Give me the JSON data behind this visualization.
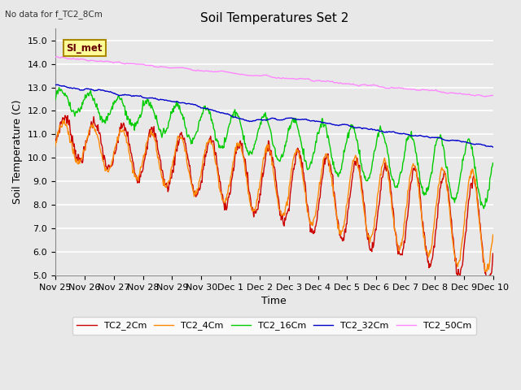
{
  "title": "Soil Temperatures Set 2",
  "top_left_note": "No data for f_TC2_8Cm",
  "annotation_box": "SI_met",
  "xlabel": "Time",
  "ylabel": "Soil Temperature (C)",
  "ylim": [
    5.0,
    15.5
  ],
  "yticks": [
    5.0,
    6.0,
    7.0,
    8.0,
    9.0,
    10.0,
    11.0,
    12.0,
    13.0,
    14.0,
    15.0
  ],
  "xtick_labels": [
    "Nov 25",
    "Nov 26",
    "Nov 27",
    "Nov 28",
    "Nov 29",
    "Nov 30",
    "Dec 1",
    "Dec 2",
    "Dec 3",
    "Dec 4",
    "Dec 5",
    "Dec 6",
    "Dec 7",
    "Dec 8",
    "Dec 9",
    "Dec 10"
  ],
  "colors": {
    "TC2_2Cm": "#cc0000",
    "TC2_4Cm": "#ff8800",
    "TC2_16Cm": "#00cc00",
    "TC2_32Cm": "#0000cc",
    "TC2_50Cm": "#ff88ff"
  },
  "bg_color": "#e8e8e8",
  "plot_bg_color": "#e8e8e8",
  "grid_color": "#ffffff",
  "n_points": 720,
  "figsize": [
    6.4,
    4.8
  ],
  "dpi": 100
}
